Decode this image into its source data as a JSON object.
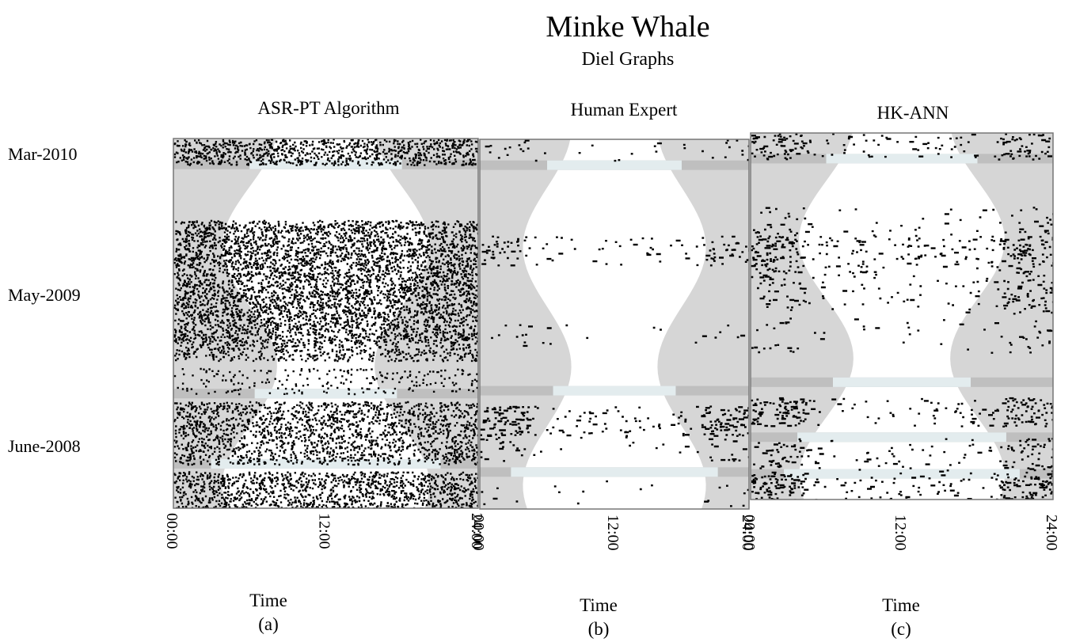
{
  "title": "Minke Whale",
  "subtitle": "Diel Graphs",
  "y_labels": [
    "Mar-2010",
    "May-2009",
    "June-2008"
  ],
  "colors": {
    "night": "#d6d6d6",
    "gap": "#e3ecee",
    "gap_edge": "#bfbfbf",
    "dot": "#000000",
    "frame": "#777777"
  },
  "chart_data": [
    {
      "type": "scatter",
      "title": "ASR-PT Algorithm",
      "xlabel": "Time",
      "caption": "(a)",
      "x_ticks": [
        "00:00",
        "12:00",
        "24:00"
      ],
      "xlim": [
        0,
        24
      ],
      "density": "very high"
    },
    {
      "type": "scatter",
      "title": "Human Expert",
      "xlabel": "Time",
      "caption": "(b)",
      "x_ticks": [
        "00:00",
        "12:00",
        "24:00"
      ],
      "xlim": [
        0,
        24
      ],
      "density": "low"
    },
    {
      "type": "scatter",
      "title": "HK-ANN",
      "xlabel": "Time",
      "caption": "(c)",
      "x_ticks": [
        "00:00",
        "12:00",
        "24:00"
      ],
      "xlim": [
        0,
        24
      ],
      "density": "medium"
    }
  ]
}
